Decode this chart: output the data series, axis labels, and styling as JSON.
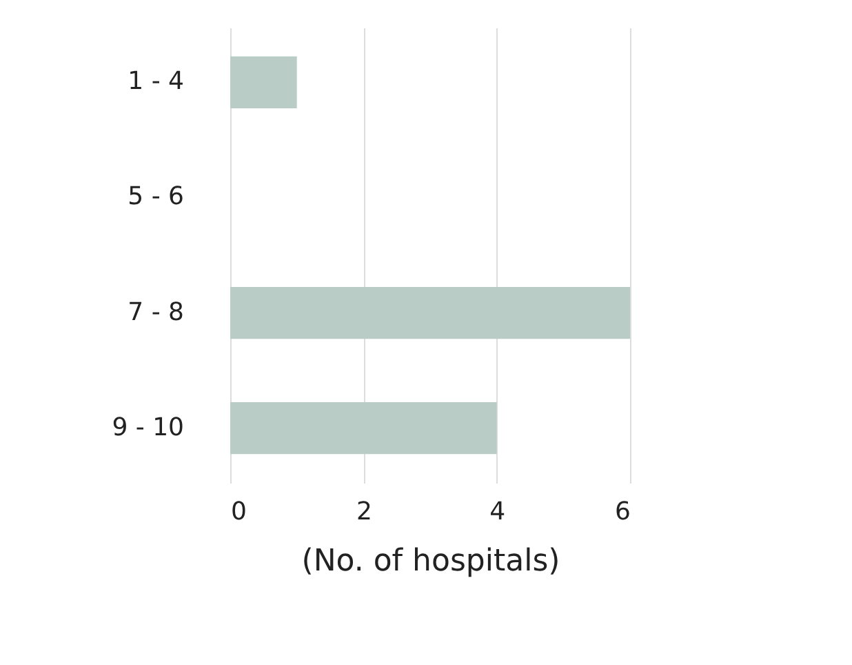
{
  "chart_data": {
    "type": "bar",
    "orientation": "horizontal",
    "categories": [
      "1 - 4",
      "5 - 6",
      "7 - 8",
      "9 - 10"
    ],
    "values": [
      1,
      0,
      6,
      4
    ],
    "color": "#b9cdc6",
    "xlabel": "(No. of hospitals)",
    "xlim": [
      0,
      6
    ],
    "xticks": [
      0,
      2,
      4,
      6
    ],
    "grid": "x"
  }
}
